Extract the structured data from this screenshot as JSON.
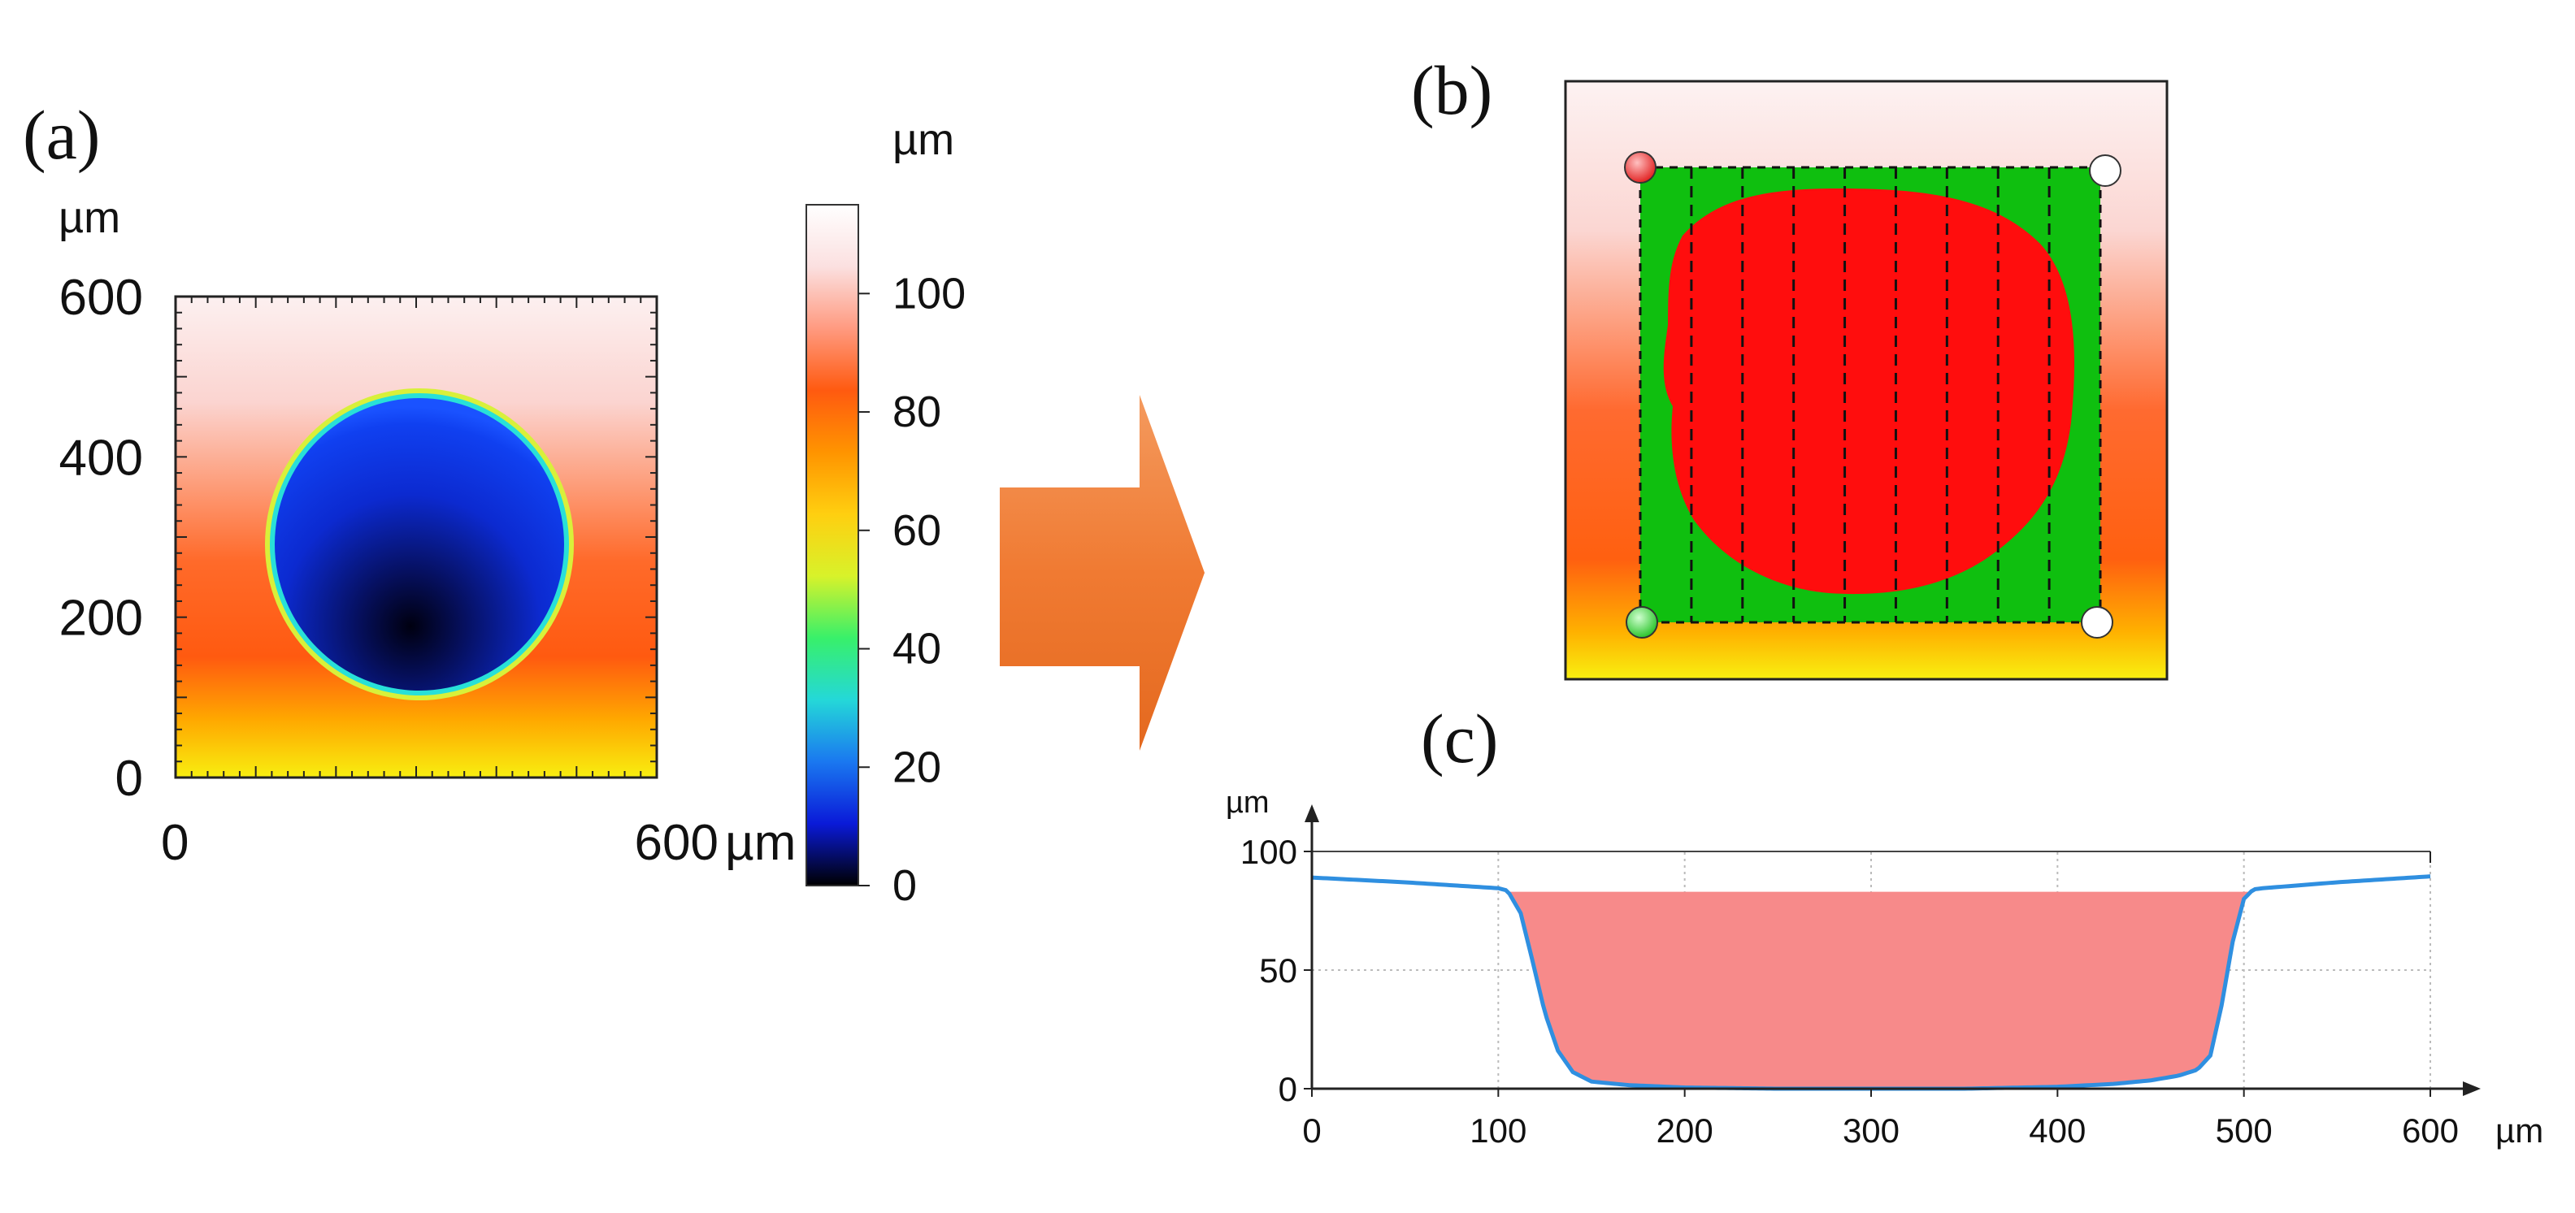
{
  "panels": {
    "a": {
      "label": "(a)"
    },
    "b": {
      "label": "(b)"
    },
    "c": {
      "label": "(c)"
    }
  },
  "colors": {
    "pit": "#1a3ee8",
    "pit_dark": "#050a40",
    "surface_top": "#fbe6e6",
    "surface_mid": "#ff5a1a",
    "surface_bottom": "#f7e515",
    "selection_green": "#0fbf0f",
    "selection_red": "#ff0d0d",
    "arrow": "#ef7d37",
    "profile_line": "#2f8fe0",
    "profile_fill": "#f78a8a"
  },
  "chart_data": [
    {
      "type": "heatmap",
      "panel": "(a)",
      "xlabel": "µm",
      "ylabel": "µm",
      "xlim": [
        0,
        600
      ],
      "ylim": [
        0,
        600
      ],
      "xticks": [
        0,
        600
      ],
      "yticks": [
        0,
        200,
        400,
        600
      ],
      "x_tick_labels": [
        "0",
        "600"
      ],
      "x_unit": "µm",
      "y_unit": "µm",
      "colorbar": {
        "unit": "µm",
        "range": [
          0,
          115
        ],
        "ticks": [
          0,
          20,
          40,
          60,
          80,
          100
        ],
        "tick_labels": [
          "0",
          "20",
          "40",
          "60",
          "80",
          "100"
        ],
        "colors": [
          "#000000",
          "#0a1ad8",
          "#1a78f0",
          "#24d8d8",
          "#38f06a",
          "#d8f22a",
          "#ffcf10",
          "#ff9400",
          "#ff5a10",
          "#ff9a80",
          "#fbe0e0",
          "#ffffff"
        ]
      },
      "pit": {
        "center_x": 300,
        "center_y": 300,
        "radius": 190,
        "depth_min": 0
      }
    },
    {
      "type": "line",
      "panel": "(c)",
      "xlabel": "µm",
      "ylabel": "µm",
      "xlim": [
        0,
        600
      ],
      "ylim": [
        0,
        100
      ],
      "xticks": [
        0,
        100,
        200,
        300,
        400,
        500,
        600
      ],
      "x_tick_labels": [
        "0",
        "100",
        "200",
        "300",
        "400",
        "500",
        "600"
      ],
      "yticks": [
        0,
        50,
        100
      ],
      "grid": true,
      "series": [
        {
          "x": [
            0,
            50,
            100,
            105,
            112,
            118,
            125,
            132,
            140,
            150,
            170,
            200,
            250,
            300,
            350,
            400,
            430,
            450,
            465,
            475,
            482,
            488,
            494,
            500,
            505,
            510,
            550,
            600
          ],
          "y": [
            89,
            87,
            84.5,
            83.5,
            74,
            55,
            32,
            16,
            7,
            3,
            1.5,
            0.5,
            0,
            0,
            0,
            0.8,
            2,
            3.5,
            5.5,
            8,
            14,
            35,
            62,
            80,
            84,
            84.5,
            87,
            89.5
          ]
        }
      ],
      "filled_region": {
        "x_start": 105,
        "x_end": 505,
        "level": 83
      }
    }
  ]
}
